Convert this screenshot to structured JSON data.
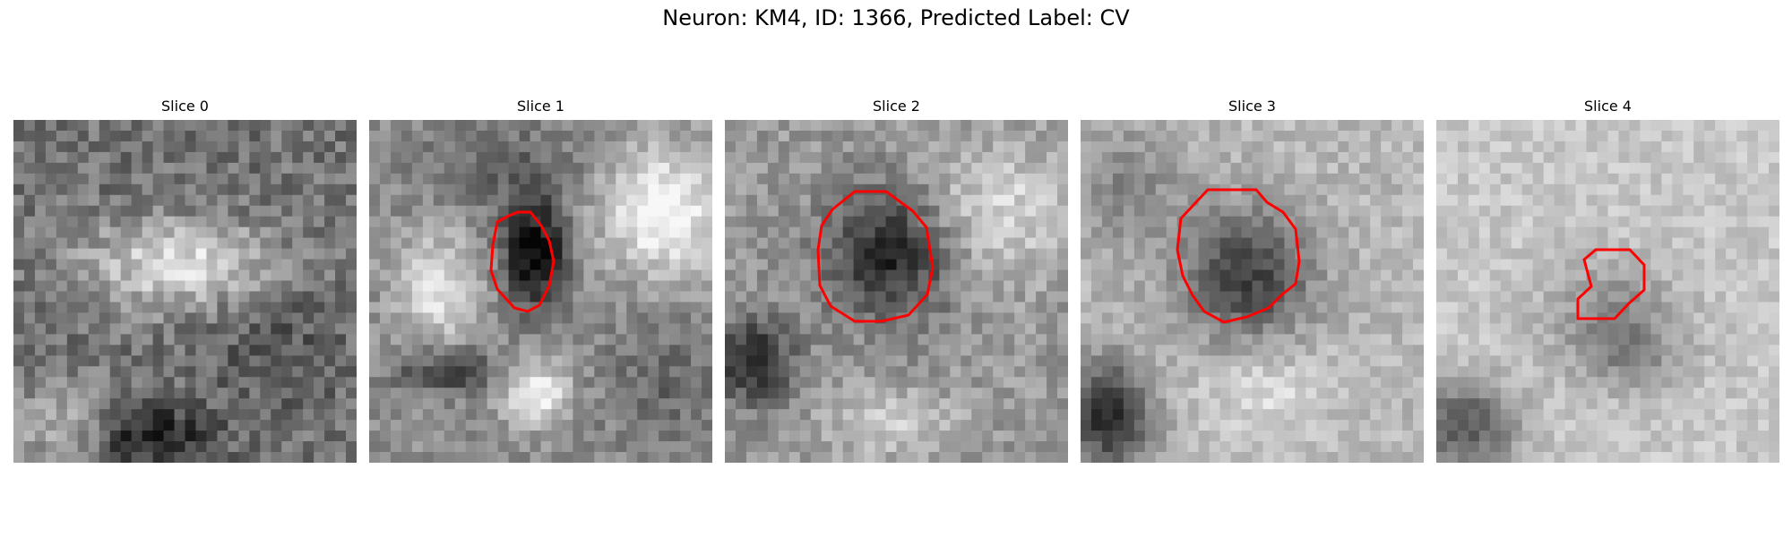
{
  "figure": {
    "title": "Neuron: KM4, ID: 1366, Predicted Label: CV"
  },
  "panels": [
    {
      "title": "Slice 0",
      "contour": null
    },
    {
      "title": "Slice 1",
      "contour": "#ff0000"
    },
    {
      "title": "Slice 2",
      "contour": "#ff0000"
    },
    {
      "title": "Slice 3",
      "contour": "#ff0000"
    },
    {
      "title": "Slice 4",
      "contour": "#ff0000"
    }
  ],
  "colors": {
    "contour": "#ff0000",
    "background": "#ffffff"
  }
}
